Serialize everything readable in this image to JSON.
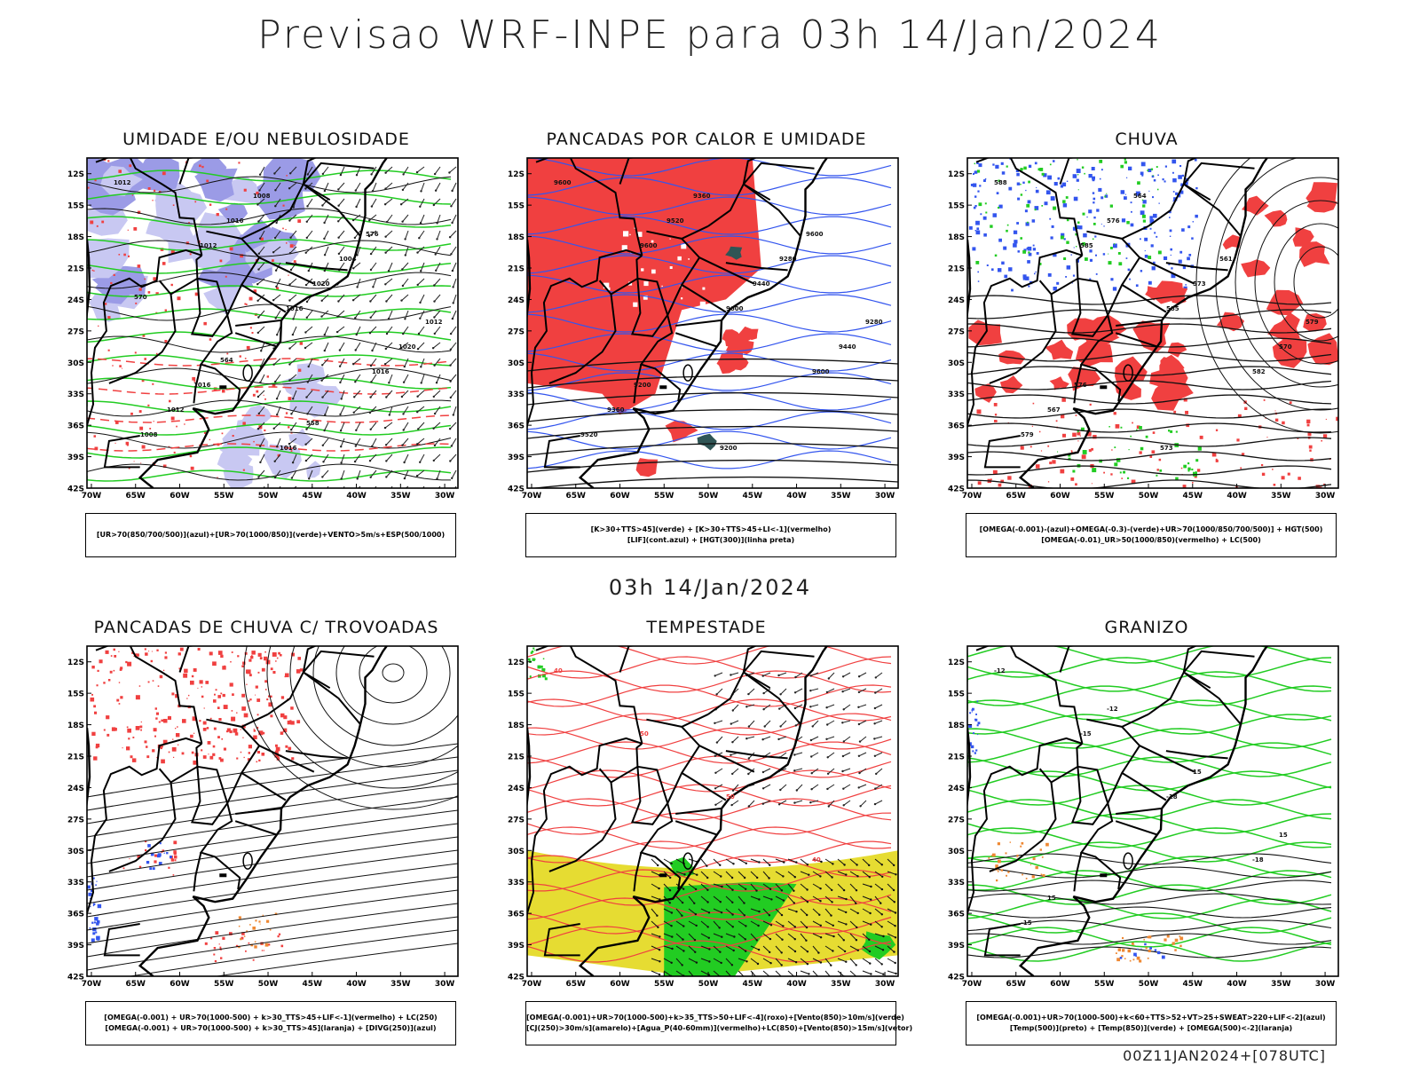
{
  "header": {
    "title": "Previsao WRF-INPE  para 03h 14/Jan/2024",
    "mid_title": "03h 14/Jan/2024",
    "footer_code": "00Z11JAN2024+[078UTC]"
  },
  "axes": {
    "lat_labels": [
      "12S",
      "15S",
      "18S",
      "21S",
      "24S",
      "27S",
      "30S",
      "33S",
      "36S",
      "39S",
      "42S"
    ],
    "lon_labels": [
      "70W",
      "65W",
      "60W",
      "55W",
      "50W",
      "45W",
      "40W",
      "35W",
      "30W"
    ]
  },
  "colors": {
    "rain_red": "#f04040",
    "moist_blue": "#9b9be6",
    "moist_light": "#c8c8f2",
    "green": "#22cc22",
    "contour_blue": "#3355ee",
    "dark_teal": "#2f5555",
    "yellow": "#e6dc32",
    "orange": "#ee8833"
  },
  "panels": [
    {
      "id": "umidade",
      "title": "UMIDADE E/OU NEBULOSIDADE",
      "legend": [
        "[UR>70(850/700/500)](azul)+[UR>70(1000/850)](verde)+VENTO>5m/s+ESP(500/1000)"
      ],
      "contour_labels": [
        "1012",
        "1012",
        "1016",
        "1016",
        "1008",
        "1016",
        "1020",
        "1020",
        "1012",
        "1008",
        "1004",
        "1012",
        "1016",
        "1016",
        "576",
        "570",
        "564",
        "558"
      ]
    },
    {
      "id": "pancadas-calor",
      "title": "PANCADAS POR CALOR E UMIDADE",
      "legend": [
        "[K>30+TTS>45](verde) + [K>30+TTS>45+LI<-1](vermelho)",
        "[LIF](cont.azul) + [HGT(300)](linha preta)"
      ],
      "contour_labels": [
        "9600",
        "9600",
        "9600",
        "9600",
        "9520",
        "9520",
        "9440",
        "9440",
        "9360",
        "9360",
        "9280",
        "9280",
        "9200",
        "9200",
        "9600"
      ]
    },
    {
      "id": "chuva",
      "title": "CHUVA",
      "legend": [
        "[OMEGA(-0.001)-(azul)+OMEGA(-0.3)-(verde)+UR>70(1000/850/700/500)] + HGT(500)",
        "[OMEGA(-0.01)_UR>50(1000/850)(vermelho) + LC(500)"
      ],
      "contour_labels": [
        "588",
        "585",
        "585",
        "582",
        "579",
        "576",
        "573",
        "570",
        "567",
        "564",
        "561",
        "579",
        "576",
        "573"
      ]
    },
    {
      "id": "pancadas-trovoadas",
      "title": "PANCADAS DE CHUVA C/ TROVOADAS",
      "legend": [
        "[OMEGA(-0.001) + UR>70(1000-500) + k>30_TTS>45+LIF<-1](vermelho) + LC(250)",
        "[OMEGA(-0.001) + UR>70(1000-500) + k>30_TTS>45](laranja) + [DIVG(250)](azul)"
      ],
      "contour_labels": []
    },
    {
      "id": "tempestade",
      "title": "TEMPESTADE",
      "legend": [
        "[OMEGA(-0.001)+UR>70(1000-500)+k>35_TTS>50+LIF<-4](roxo)+[Vento(850)>10m/s](verde)",
        "[CJ(250)>30m/s](amarelo)+[Agua_P(40-60mm)](vermelho)+LC(850)+[Vento(850)>15m/s](vetor)"
      ],
      "contour_labels": [
        "40",
        "50",
        "50",
        "40"
      ]
    },
    {
      "id": "granizo",
      "title": "GRANIZO",
      "legend": [
        "[OMEGA(-0.001)+UR>70(1000-500)+k<60+TTS>52+VT>25+SWEAT>220+LIF<-2](azul)",
        "[Temp(500)](preto) + [Temp(850)](verde) + [OMEGA(500)<-2](laranja)"
      ],
      "contour_labels": [
        "-12",
        "-15",
        "-18",
        "-18",
        "-15",
        "-12",
        "15",
        "15",
        "15"
      ]
    }
  ]
}
